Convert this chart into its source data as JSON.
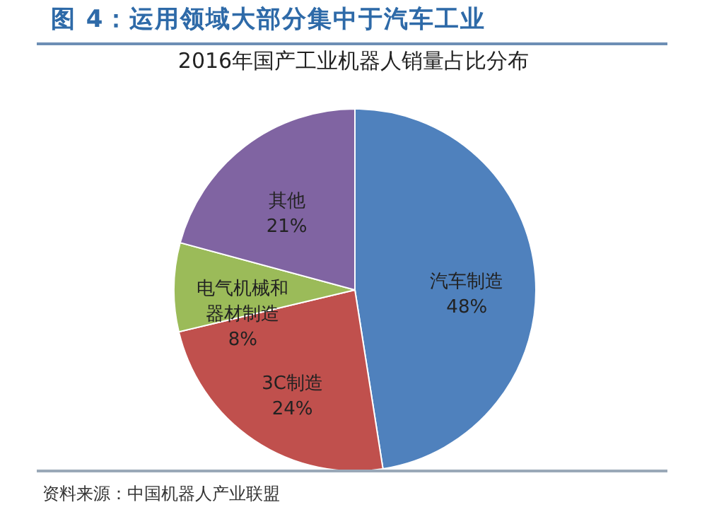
{
  "chart_data": {
    "type": "pie",
    "title": "图 4：运用领域大部分集中于汽车工业",
    "subtitle": "2016年国产工业机器人销量占比分布",
    "categories": [
      "汽车制造",
      "3C制造",
      "电气机械和器材制造",
      "其他"
    ],
    "values": [
      48,
      24,
      8,
      21
    ],
    "value_labels": [
      "48%",
      "24%",
      "8%",
      "21%"
    ],
    "colors": [
      "#4f81bd",
      "#c0504d",
      "#9bbb59",
      "#8064a2"
    ],
    "legend": false,
    "annotations": [
      "资料来源：中国机器人产业联盟"
    ]
  }
}
